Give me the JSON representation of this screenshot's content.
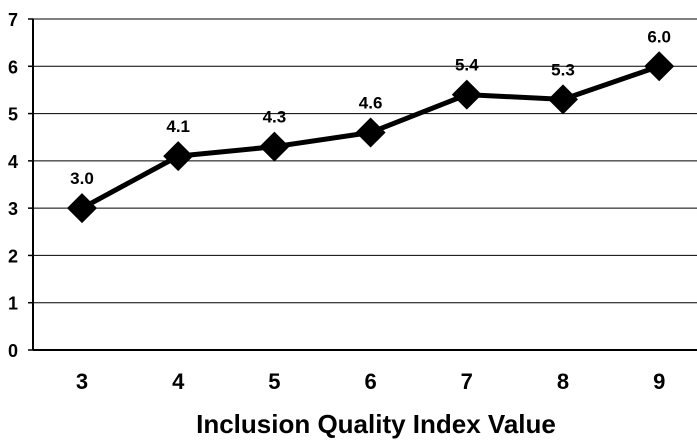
{
  "chart_data": {
    "type": "line",
    "title": "",
    "xlabel": "Inclusion Quality Index Value",
    "ylabel": "",
    "categories": [
      "3",
      "4",
      "5",
      "6",
      "7",
      "8",
      "9"
    ],
    "series": [
      {
        "values": [
          3.0,
          4.1,
          4.3,
          4.6,
          5.4,
          5.3,
          6.0
        ],
        "labels": [
          "3.0",
          "4.1",
          "4.3",
          "4.6",
          "5.4",
          "5.3",
          "6.0"
        ]
      }
    ],
    "ylim": [
      0,
      7
    ],
    "yticks": [
      "0",
      "1",
      "2",
      "3",
      "4",
      "5",
      "6",
      "7"
    ],
    "grid": "horizontal",
    "legend": "none",
    "marker": "diamond",
    "colors": {
      "line": "#000000",
      "grid": "#000000",
      "text": "#000000"
    }
  }
}
